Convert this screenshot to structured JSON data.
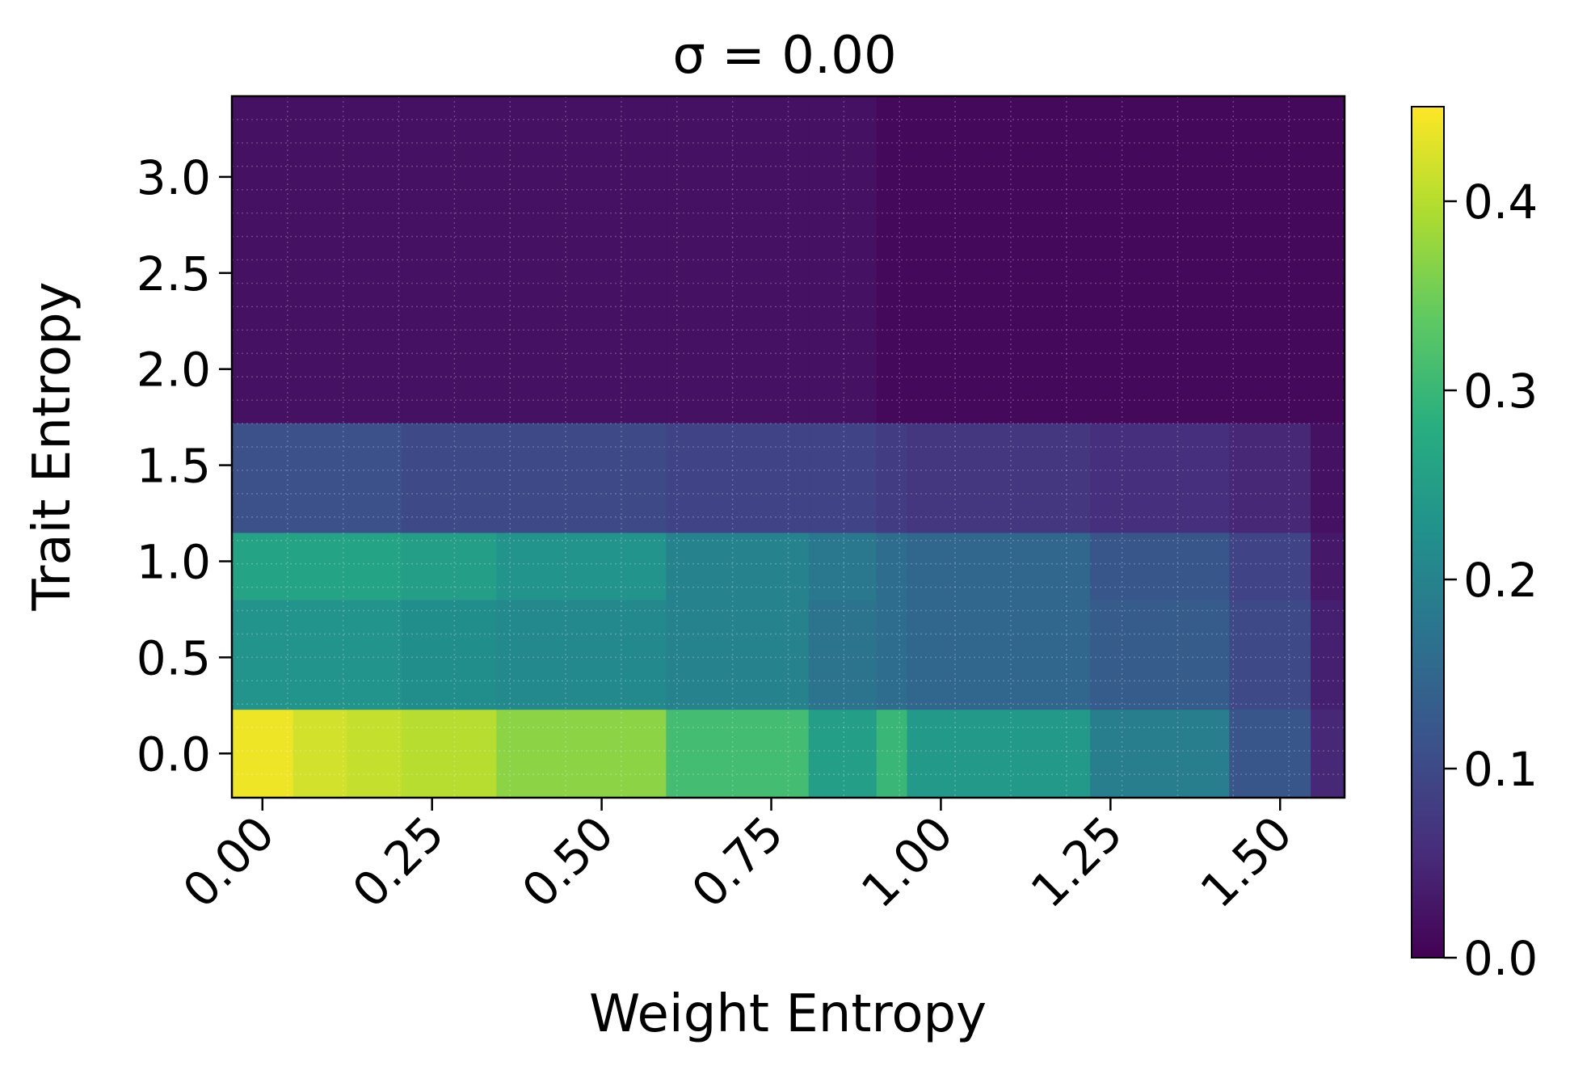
{
  "chart_data": {
    "type": "heatmap",
    "title": "σ = 0.00",
    "xlabel": "Weight Entropy",
    "ylabel": "Trait Entropy",
    "colormap": "viridis",
    "grid": true,
    "x_range": [
      -0.045,
      1.595
    ],
    "y_range": [
      -0.23,
      3.42
    ],
    "x_ticks": [
      "0.00",
      "0.25",
      "0.50",
      "0.75",
      "1.00",
      "1.25",
      "1.50"
    ],
    "x_tick_values": [
      0.0,
      0.25,
      0.5,
      0.75,
      1.0,
      1.25,
      1.5
    ],
    "y_ticks": [
      "0.0",
      "0.5",
      "1.0",
      "1.5",
      "2.0",
      "2.5",
      "3.0"
    ],
    "y_tick_values": [
      0.0,
      0.5,
      1.0,
      1.5,
      2.0,
      2.5,
      3.0
    ],
    "colorbar": {
      "range": [
        0.0,
        0.45
      ],
      "ticks": [
        "0.0",
        "0.1",
        "0.2",
        "0.3",
        "0.4"
      ],
      "tick_values": [
        0.0,
        0.1,
        0.2,
        0.3,
        0.4
      ]
    },
    "x_edges": [
      -0.045,
      0.045,
      0.125,
      0.205,
      0.345,
      0.595,
      0.805,
      0.905,
      0.95,
      1.22,
      1.425,
      1.545,
      1.595
    ],
    "y_edges": [
      -0.23,
      0.23,
      0.8,
      1.15,
      1.72,
      3.42
    ],
    "values": [
      [
        0.44,
        0.42,
        0.41,
        0.4,
        0.37,
        0.31,
        0.25,
        0.3,
        0.24,
        0.19,
        0.12,
        0.05
      ],
      [
        0.23,
        0.23,
        0.23,
        0.22,
        0.21,
        0.2,
        0.17,
        0.16,
        0.15,
        0.13,
        0.1,
        0.04
      ],
      [
        0.26,
        0.26,
        0.26,
        0.25,
        0.23,
        0.2,
        0.18,
        0.16,
        0.15,
        0.12,
        0.09,
        0.03
      ],
      [
        0.11,
        0.11,
        0.11,
        0.1,
        0.1,
        0.09,
        0.09,
        0.08,
        0.07,
        0.06,
        0.05,
        0.02
      ],
      [
        0.02,
        0.02,
        0.02,
        0.02,
        0.02,
        0.02,
        0.02,
        0.01,
        0.01,
        0.01,
        0.01,
        0.01
      ]
    ]
  }
}
